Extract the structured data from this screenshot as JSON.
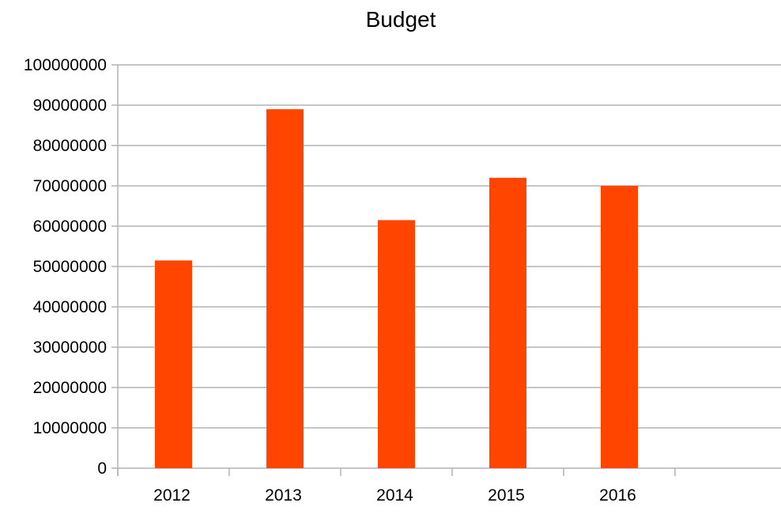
{
  "chart_data": {
    "type": "bar",
    "title": "Budget",
    "categories": [
      "2012",
      "2013",
      "2014",
      "2015",
      "2016"
    ],
    "values": [
      51500000,
      89000000,
      61500000,
      72000000,
      70000000
    ],
    "yticks": [
      "0",
      "10000000",
      "20000000",
      "30000000",
      "40000000",
      "50000000",
      "60000000",
      "70000000",
      "80000000",
      "90000000",
      "100000000"
    ],
    "ylim": [
      0,
      100000000
    ],
    "xlabel": "",
    "ylabel": "",
    "grid": "horizontal",
    "legend": "none",
    "colors": {
      "bar": "#ff4500",
      "grid": "#b3b3b3",
      "axis": "#b3b3b3",
      "text": "#000000"
    }
  }
}
